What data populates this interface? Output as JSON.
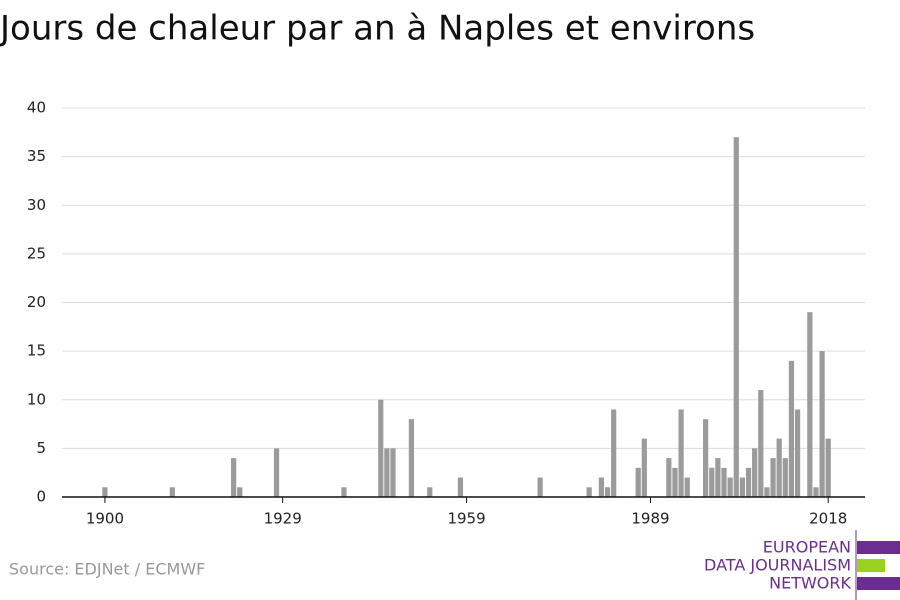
{
  "chart_data": {
    "type": "bar",
    "title": "Jours de chaleur par an à Naples et environs",
    "source": "Source: EDJNet / ECMWF",
    "logo": [
      "EUROPEAN",
      "DATA JOURNALISM",
      "NETWORK"
    ],
    "color": "#9b9b9b",
    "x": [
      1900,
      1911,
      1921,
      1922,
      1928,
      1939,
      1945,
      1946,
      1947,
      1950,
      1953,
      1958,
      1971,
      1979,
      1981,
      1982,
      1983,
      1987,
      1988,
      1992,
      1993,
      1994,
      1995,
      1998,
      1999,
      2000,
      2001,
      2002,
      2003,
      2004,
      2005,
      2006,
      2007,
      2008,
      2009,
      2010,
      2011,
      2012,
      2013,
      2015,
      2016,
      2017,
      2018
    ],
    "values": [
      1,
      1,
      4,
      1,
      5,
      1,
      10,
      5,
      5,
      8,
      1,
      2,
      2,
      1,
      2,
      1,
      9,
      3,
      6,
      4,
      3,
      9,
      2,
      8,
      3,
      4,
      3,
      2,
      37,
      2,
      3,
      5,
      11,
      1,
      4,
      6,
      4,
      14,
      9,
      19,
      1,
      15,
      6
    ],
    "xlim": [
      1893,
      2024
    ],
    "xticks": [
      1900,
      1929,
      1959,
      1989,
      2018
    ],
    "ylim": [
      0,
      40
    ],
    "yticks": [
      0,
      5,
      10,
      15,
      20,
      25,
      30,
      35,
      40
    ],
    "grid": true
  }
}
